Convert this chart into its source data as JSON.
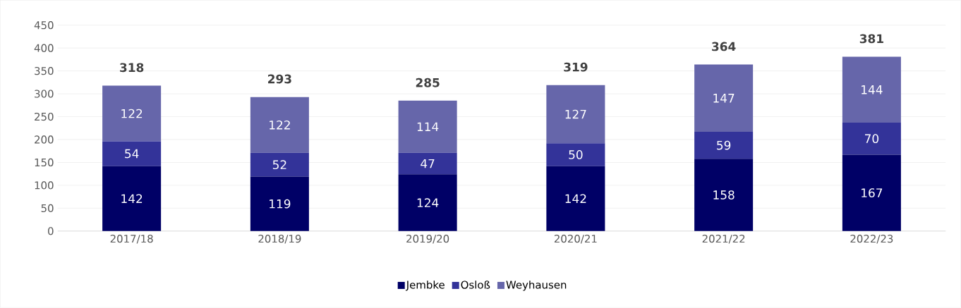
{
  "chart_data": {
    "type": "bar",
    "stacked": true,
    "categories": [
      "2017/18",
      "2018/19",
      "2019/20",
      "2020/21",
      "2021/22",
      "2022/23"
    ],
    "series": [
      {
        "name": "Jembke",
        "color": "#000066",
        "values": [
          142,
          119,
          124,
          142,
          158,
          167
        ]
      },
      {
        "name": "Osloß",
        "color": "#333399",
        "values": [
          54,
          52,
          47,
          50,
          59,
          70
        ]
      },
      {
        "name": "Weyhausen",
        "color": "#6666aa",
        "values": [
          122,
          122,
          114,
          127,
          147,
          144
        ]
      }
    ],
    "totals": [
      "318",
      "293",
      "285",
      "319",
      "364",
      "381"
    ],
    "data_labels": true,
    "ylim": [
      0,
      450
    ],
    "yticks": [
      0,
      50,
      100,
      150,
      200,
      250,
      300,
      350,
      400,
      450
    ],
    "grid": "y",
    "legend": "bottom"
  }
}
